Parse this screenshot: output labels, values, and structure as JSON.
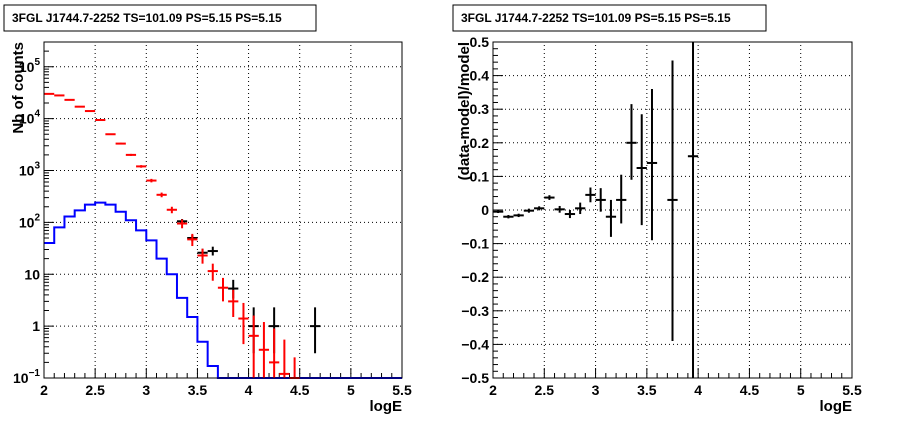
{
  "chart_data": [
    {
      "id": "left",
      "type": "histogram",
      "title": "3FGL J1744.7-2252 TS=101.09 PS=5.15 PS=5.15",
      "xlabel": "logE",
      "ylabel": "Nb of counts",
      "xlim": [
        2,
        5.5
      ],
      "ylim": [
        0.1,
        300000
      ],
      "ylog": true,
      "grid": true,
      "xticks": [
        "2",
        "2.5",
        "3",
        "3.5",
        "4",
        "4.5",
        "5",
        "5.5"
      ],
      "yticks": [
        {
          "value": 0.1,
          "base": "10",
          "exp": "−1"
        },
        {
          "value": 1,
          "label": "1"
        },
        {
          "value": 10,
          "label": "10"
        },
        {
          "value": 100,
          "base": "10",
          "exp": "2"
        },
        {
          "value": 1000,
          "base": "10",
          "exp": "3"
        },
        {
          "value": 10000,
          "base": "10",
          "exp": "4"
        },
        {
          "value": 100000,
          "base": "10",
          "exp": "5"
        }
      ],
      "series": [
        {
          "kind": "step",
          "color": "#0000ff",
          "bin_width": 0.1,
          "bins": [
            {
              "x": 2.0,
              "y": 40
            },
            {
              "x": 2.1,
              "y": 80
            },
            {
              "x": 2.2,
              "y": 130
            },
            {
              "x": 2.3,
              "y": 170
            },
            {
              "x": 2.4,
              "y": 220
            },
            {
              "x": 2.5,
              "y": 240
            },
            {
              "x": 2.6,
              "y": 220
            },
            {
              "x": 2.7,
              "y": 160
            },
            {
              "x": 2.8,
              "y": 110
            },
            {
              "x": 2.9,
              "y": 70
            },
            {
              "x": 3.0,
              "y": 45
            },
            {
              "x": 3.1,
              "y": 20
            },
            {
              "x": 3.2,
              "y": 10
            },
            {
              "x": 3.3,
              "y": 3.5
            },
            {
              "x": 3.4,
              "y": 1.5
            },
            {
              "x": 3.5,
              "y": 0.5
            },
            {
              "x": 3.6,
              "y": 0.17
            },
            {
              "x": 3.7,
              "y": 0.1
            }
          ]
        },
        {
          "kind": "points",
          "color": "#000000",
          "points": [
            {
              "x": 3.35,
              "y": 105,
              "lo": 95,
              "hi": 116
            },
            {
              "x": 3.45,
              "y": 50,
              "lo": 43,
              "hi": 57
            },
            {
              "x": 3.55,
              "y": 26,
              "lo": 21,
              "hi": 31
            },
            {
              "x": 3.65,
              "y": 28,
              "lo": 23,
              "hi": 34
            },
            {
              "x": 3.85,
              "y": 5.3,
              "lo": 3.4,
              "hi": 7.8
            },
            {
              "x": 4.05,
              "y": 1,
              "lo": 0.3,
              "hi": 2.3
            },
            {
              "x": 4.25,
              "y": 1,
              "lo": 0.3,
              "hi": 2.3
            },
            {
              "x": 4.65,
              "y": 1,
              "lo": 0.3,
              "hi": 2.3
            }
          ]
        },
        {
          "kind": "points",
          "color": "#ff0000",
          "points": [
            {
              "x": 2.05,
              "y": 30000,
              "lo": 29700,
              "hi": 30300
            },
            {
              "x": 2.15,
              "y": 28000,
              "lo": 27700,
              "hi": 28300
            },
            {
              "x": 2.25,
              "y": 23000,
              "lo": 22700,
              "hi": 23300
            },
            {
              "x": 2.35,
              "y": 17000,
              "lo": 16700,
              "hi": 17300
            },
            {
              "x": 2.45,
              "y": 14000,
              "lo": 13700,
              "hi": 14300
            },
            {
              "x": 2.55,
              "y": 9400,
              "lo": 9200,
              "hi": 9600
            },
            {
              "x": 2.65,
              "y": 5000,
              "lo": 4850,
              "hi": 5150
            },
            {
              "x": 2.75,
              "y": 3300,
              "lo": 3190,
              "hi": 3420
            },
            {
              "x": 2.85,
              "y": 2000,
              "lo": 1910,
              "hi": 2090
            },
            {
              "x": 2.95,
              "y": 1200,
              "lo": 1130,
              "hi": 1270
            },
            {
              "x": 3.05,
              "y": 640,
              "lo": 590,
              "hi": 690
            },
            {
              "x": 3.15,
              "y": 340,
              "lo": 305,
              "hi": 375
            },
            {
              "x": 3.25,
              "y": 175,
              "lo": 150,
              "hi": 200
            },
            {
              "x": 3.35,
              "y": 95,
              "lo": 77,
              "hi": 114
            },
            {
              "x": 3.45,
              "y": 47,
              "lo": 35,
              "hi": 60
            },
            {
              "x": 3.55,
              "y": 23,
              "lo": 16,
              "hi": 31
            },
            {
              "x": 3.65,
              "y": 11.5,
              "lo": 7.5,
              "hi": 16
            },
            {
              "x": 3.75,
              "y": 5.5,
              "lo": 3,
              "hi": 8.5
            },
            {
              "x": 3.85,
              "y": 3,
              "lo": 1.5,
              "hi": 5
            },
            {
              "x": 3.95,
              "y": 1.4,
              "lo": 0.45,
              "hi": 2.8
            },
            {
              "x": 4.05,
              "y": 0.65,
              "lo": 0.1,
              "hi": 1.6
            },
            {
              "x": 4.15,
              "y": 0.35,
              "lo": 0.1,
              "hi": 1.2
            },
            {
              "x": 4.25,
              "y": 0.2,
              "lo": 0.1,
              "hi": 0.9
            },
            {
              "x": 4.35,
              "y": 0.12,
              "lo": 0.1,
              "hi": 0.55
            },
            {
              "x": 4.45,
              "y": 0.1,
              "lo": 0.1,
              "hi": 0.25
            }
          ]
        }
      ]
    },
    {
      "id": "right",
      "type": "scatter",
      "title": "3FGL J1744.7-2252 TS=101.09 PS=5.15 PS=5.15",
      "xlabel": "logE",
      "ylabel": "(data-model)/model",
      "xlim": [
        2,
        5.5
      ],
      "ylim": [
        -0.5,
        0.5
      ],
      "ylog": false,
      "grid": true,
      "xticks": [
        "2",
        "2.5",
        "3",
        "3.5",
        "4",
        "4.5",
        "5",
        "5.5"
      ],
      "yticks": [
        "−0.5",
        "−0.4",
        "−0.3",
        "−0.2",
        "−0.1",
        "0",
        "0.1",
        "0.2",
        "0.3",
        "0.4",
        "0.5"
      ],
      "series": [
        {
          "kind": "points",
          "color": "#000000",
          "points": [
            {
              "x": 2.05,
              "y": -0.005,
              "lo": -0.009,
              "hi": -0.001
            },
            {
              "x": 2.15,
              "y": -0.02,
              "lo": -0.025,
              "hi": -0.015
            },
            {
              "x": 2.25,
              "y": -0.016,
              "lo": -0.021,
              "hi": -0.011
            },
            {
              "x": 2.35,
              "y": -0.002,
              "lo": -0.008,
              "hi": 0.004
            },
            {
              "x": 2.45,
              "y": 0.005,
              "lo": -0.001,
              "hi": 0.011
            },
            {
              "x": 2.55,
              "y": 0.037,
              "lo": 0.03,
              "hi": 0.044
            },
            {
              "x": 2.65,
              "y": 0.002,
              "lo": -0.008,
              "hi": 0.012
            },
            {
              "x": 2.75,
              "y": -0.012,
              "lo": -0.024,
              "hi": 0.0
            },
            {
              "x": 2.85,
              "y": 0.005,
              "lo": -0.012,
              "hi": 0.022
            },
            {
              "x": 2.95,
              "y": 0.045,
              "lo": 0.023,
              "hi": 0.067
            },
            {
              "x": 3.05,
              "y": 0.03,
              "lo": -0.005,
              "hi": 0.065
            },
            {
              "x": 3.15,
              "y": -0.02,
              "lo": -0.08,
              "hi": 0.03
            },
            {
              "x": 3.25,
              "y": 0.03,
              "lo": -0.04,
              "hi": 0.105
            },
            {
              "x": 3.35,
              "y": 0.2,
              "lo": 0.09,
              "hi": 0.315
            },
            {
              "x": 3.45,
              "y": 0.125,
              "lo": -0.045,
              "hi": 0.285
            },
            {
              "x": 3.55,
              "y": 0.14,
              "lo": -0.09,
              "hi": 0.36
            },
            {
              "x": 3.75,
              "y": 0.03,
              "lo": -0.39,
              "hi": 0.445
            },
            {
              "x": 3.95,
              "y": 0.16,
              "lo": -0.5,
              "hi": 0.5
            }
          ]
        }
      ]
    }
  ]
}
